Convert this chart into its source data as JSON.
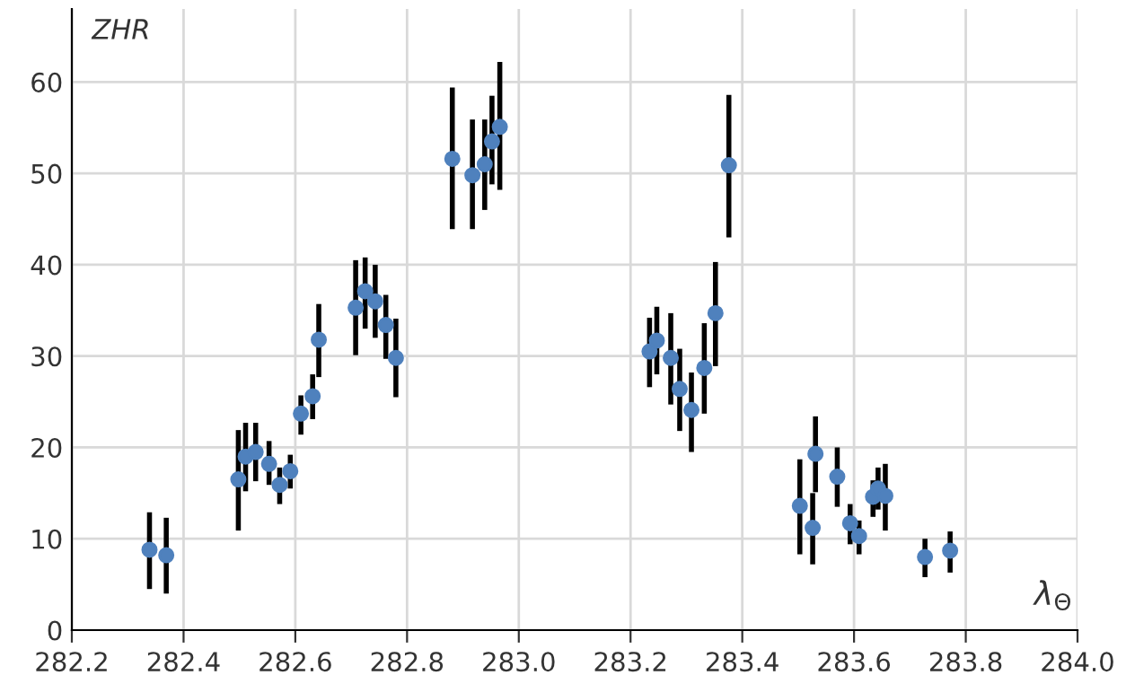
{
  "chart_data": {
    "type": "scatter",
    "ylabel": "ZHR",
    "xlabel": "λ$_{Θ}$",
    "marker": "circle",
    "grid": true,
    "legend": false,
    "xlim": [
      282.2,
      284.0
    ],
    "xticks": [
      {
        "value": 282.2,
        "label": "282.2"
      },
      {
        "value": 282.4,
        "label": "282.4"
      },
      {
        "value": 282.6,
        "label": "282.6"
      },
      {
        "value": 282.8,
        "label": "282.8"
      },
      {
        "value": 283.0,
        "label": "283.0"
      },
      {
        "value": 283.2,
        "label": "283.2"
      },
      {
        "value": 283.4,
        "label": "283.4"
      },
      {
        "value": 283.6,
        "label": "283.6"
      },
      {
        "value": 283.8,
        "label": "283.8"
      },
      {
        "value": 284.0,
        "label": "284.0"
      }
    ],
    "ylim": [
      0,
      68
    ],
    "yticks": [
      0,
      10,
      20,
      30,
      40,
      50,
      60
    ],
    "series": [
      {
        "color": "#4f81bd",
        "x": [
          282.339,
          282.369,
          282.498,
          282.511,
          282.529,
          282.553,
          282.572,
          282.591,
          282.61,
          282.631,
          282.642,
          282.708,
          282.725,
          282.743,
          282.762,
          282.78,
          282.881,
          282.917,
          282.939,
          282.952,
          282.966,
          283.234,
          283.247,
          283.272,
          283.288,
          283.309,
          283.332,
          283.352,
          283.376,
          283.503,
          283.526,
          283.531,
          283.57,
          283.593,
          283.609,
          283.634,
          283.643,
          283.656,
          283.727,
          283.772
        ],
        "values": [
          8.8,
          8.2,
          16.5,
          19.0,
          19.5,
          18.2,
          15.9,
          17.4,
          23.7,
          25.6,
          31.8,
          35.3,
          37.1,
          36.0,
          33.4,
          29.8,
          51.6,
          49.8,
          51.0,
          53.5,
          55.1,
          30.5,
          31.7,
          29.8,
          26.4,
          24.1,
          28.7,
          34.7,
          50.9,
          13.6,
          11.2,
          19.3,
          16.8,
          11.7,
          10.3,
          14.6,
          15.5,
          14.7,
          8.0,
          8.7
        ],
        "errors": [
          [
            4.5,
            12.9
          ],
          [
            4.0,
            12.3
          ],
          [
            10.9,
            21.9
          ],
          [
            15.2,
            22.7
          ],
          [
            16.3,
            22.7
          ],
          [
            15.9,
            20.7
          ],
          [
            13.8,
            17.8
          ],
          [
            15.5,
            19.2
          ],
          [
            21.4,
            25.7
          ],
          [
            23.1,
            28.0
          ],
          [
            27.7,
            35.7
          ],
          [
            30.1,
            40.5
          ],
          [
            33.0,
            40.8
          ],
          [
            32.0,
            40.0
          ],
          [
            29.7,
            36.7
          ],
          [
            25.5,
            34.1
          ],
          [
            43.9,
            59.4
          ],
          [
            43.9,
            55.9
          ],
          [
            46.0,
            55.9
          ],
          [
            48.8,
            58.5
          ],
          [
            48.2,
            62.2
          ],
          [
            26.6,
            34.2
          ],
          [
            28.0,
            35.4
          ],
          [
            24.7,
            34.7
          ],
          [
            21.8,
            30.8
          ],
          [
            19.5,
            28.2
          ],
          [
            23.7,
            33.6
          ],
          [
            28.9,
            40.3
          ],
          [
            43.0,
            58.6
          ],
          [
            8.3,
            18.7
          ],
          [
            7.2,
            15.0
          ],
          [
            15.1,
            23.4
          ],
          [
            13.5,
            20.0
          ],
          [
            9.4,
            13.8
          ],
          [
            8.3,
            12.0
          ],
          [
            12.4,
            16.4
          ],
          [
            13.2,
            17.8
          ],
          [
            10.9,
            18.2
          ],
          [
            5.8,
            10.0
          ],
          [
            6.3,
            10.8
          ]
        ]
      }
    ]
  }
}
